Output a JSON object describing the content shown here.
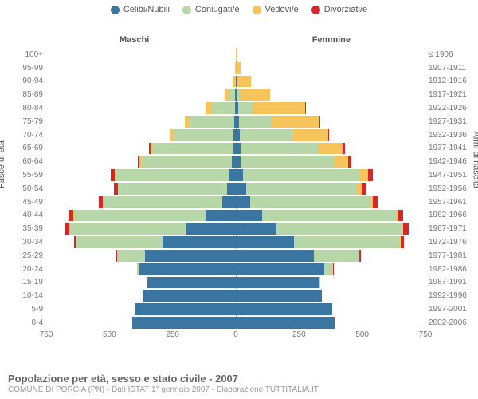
{
  "chart": {
    "type": "population-pyramid",
    "legend": [
      {
        "label": "Celibi/Nubili",
        "color": "#3b76a3"
      },
      {
        "label": "Coniugati/e",
        "color": "#b7d7a8"
      },
      {
        "label": "Vedovi/e",
        "color": "#f7c35b"
      },
      {
        "label": "Divorziati/e",
        "color": "#d62728"
      }
    ],
    "side_labels": {
      "left": "Maschi",
      "right": "Femmine"
    },
    "axis_titles": {
      "left": "Fasce di età",
      "right": "Anni di nascita"
    },
    "xmax": 750,
    "x_ticks": [
      750,
      500,
      250,
      0,
      250,
      500,
      750
    ],
    "background_color": "#ffffff",
    "grid_color": "#e8e8e8",
    "label_fontsize": 10,
    "rows": [
      {
        "age": "100+",
        "birth": "≤ 1906",
        "m": [
          0,
          0,
          0,
          0
        ],
        "f": [
          0,
          0,
          2,
          0
        ]
      },
      {
        "age": "95-99",
        "birth": "1907-1911",
        "m": [
          0,
          0,
          3,
          0
        ],
        "f": [
          1,
          0,
          18,
          0
        ]
      },
      {
        "age": "90-94",
        "birth": "1912-1916",
        "m": [
          1,
          2,
          10,
          0
        ],
        "f": [
          2,
          2,
          55,
          0
        ]
      },
      {
        "age": "85-89",
        "birth": "1917-1921",
        "m": [
          2,
          28,
          15,
          0
        ],
        "f": [
          5,
          12,
          120,
          0
        ]
      },
      {
        "age": "80-84",
        "birth": "1922-1926",
        "m": [
          4,
          95,
          20,
          1
        ],
        "f": [
          10,
          55,
          210,
          2
        ]
      },
      {
        "age": "75-79",
        "birth": "1927-1931",
        "m": [
          6,
          180,
          15,
          2
        ],
        "f": [
          12,
          130,
          190,
          3
        ]
      },
      {
        "age": "70-74",
        "birth": "1932-1936",
        "m": [
          8,
          240,
          12,
          3
        ],
        "f": [
          15,
          210,
          140,
          5
        ]
      },
      {
        "age": "65-69",
        "birth": "1937-1941",
        "m": [
          10,
          320,
          8,
          5
        ],
        "f": [
          18,
          310,
          95,
          8
        ]
      },
      {
        "age": "60-64",
        "birth": "1942-1946",
        "m": [
          15,
          360,
          5,
          8
        ],
        "f": [
          20,
          370,
          55,
          12
        ]
      },
      {
        "age": "55-59",
        "birth": "1947-1951",
        "m": [
          25,
          450,
          4,
          15
        ],
        "f": [
          28,
          460,
          35,
          18
        ]
      },
      {
        "age": "50-54",
        "birth": "1952-1956",
        "m": [
          35,
          430,
          2,
          14
        ],
        "f": [
          40,
          440,
          18,
          16
        ]
      },
      {
        "age": "45-49",
        "birth": "1957-1961",
        "m": [
          55,
          470,
          1,
          16
        ],
        "f": [
          58,
          475,
          10,
          18
        ]
      },
      {
        "age": "40-44",
        "birth": "1962-1966",
        "m": [
          120,
          520,
          1,
          20
        ],
        "f": [
          105,
          530,
          6,
          22
        ]
      },
      {
        "age": "35-39",
        "birth": "1967-1971",
        "m": [
          200,
          460,
          0,
          18
        ],
        "f": [
          160,
          500,
          3,
          20
        ]
      },
      {
        "age": "30-34",
        "birth": "1972-1976",
        "m": [
          290,
          340,
          0,
          10
        ],
        "f": [
          230,
          420,
          1,
          14
        ]
      },
      {
        "age": "25-29",
        "birth": "1977-1981",
        "m": [
          360,
          110,
          0,
          3
        ],
        "f": [
          310,
          180,
          0,
          6
        ]
      },
      {
        "age": "20-24",
        "birth": "1982-1986",
        "m": [
          380,
          12,
          0,
          0
        ],
        "f": [
          350,
          35,
          0,
          1
        ]
      },
      {
        "age": "15-19",
        "birth": "1987-1991",
        "m": [
          350,
          0,
          0,
          0
        ],
        "f": [
          330,
          1,
          0,
          0
        ]
      },
      {
        "age": "10-14",
        "birth": "1992-1996",
        "m": [
          370,
          0,
          0,
          0
        ],
        "f": [
          340,
          0,
          0,
          0
        ]
      },
      {
        "age": "5-9",
        "birth": "1997-2001",
        "m": [
          400,
          0,
          0,
          0
        ],
        "f": [
          380,
          0,
          0,
          0
        ]
      },
      {
        "age": "0-4",
        "birth": "2002-2006",
        "m": [
          410,
          0,
          0,
          0
        ],
        "f": [
          390,
          0,
          0,
          0
        ]
      }
    ]
  },
  "footer": {
    "title": "Popolazione per età, sesso e stato civile - 2007",
    "sub": "COMUNE DI PORCIA (PN) - Dati ISTAT 1° gennaio 2007 - Elaborazione TUTTITALIA.IT"
  }
}
